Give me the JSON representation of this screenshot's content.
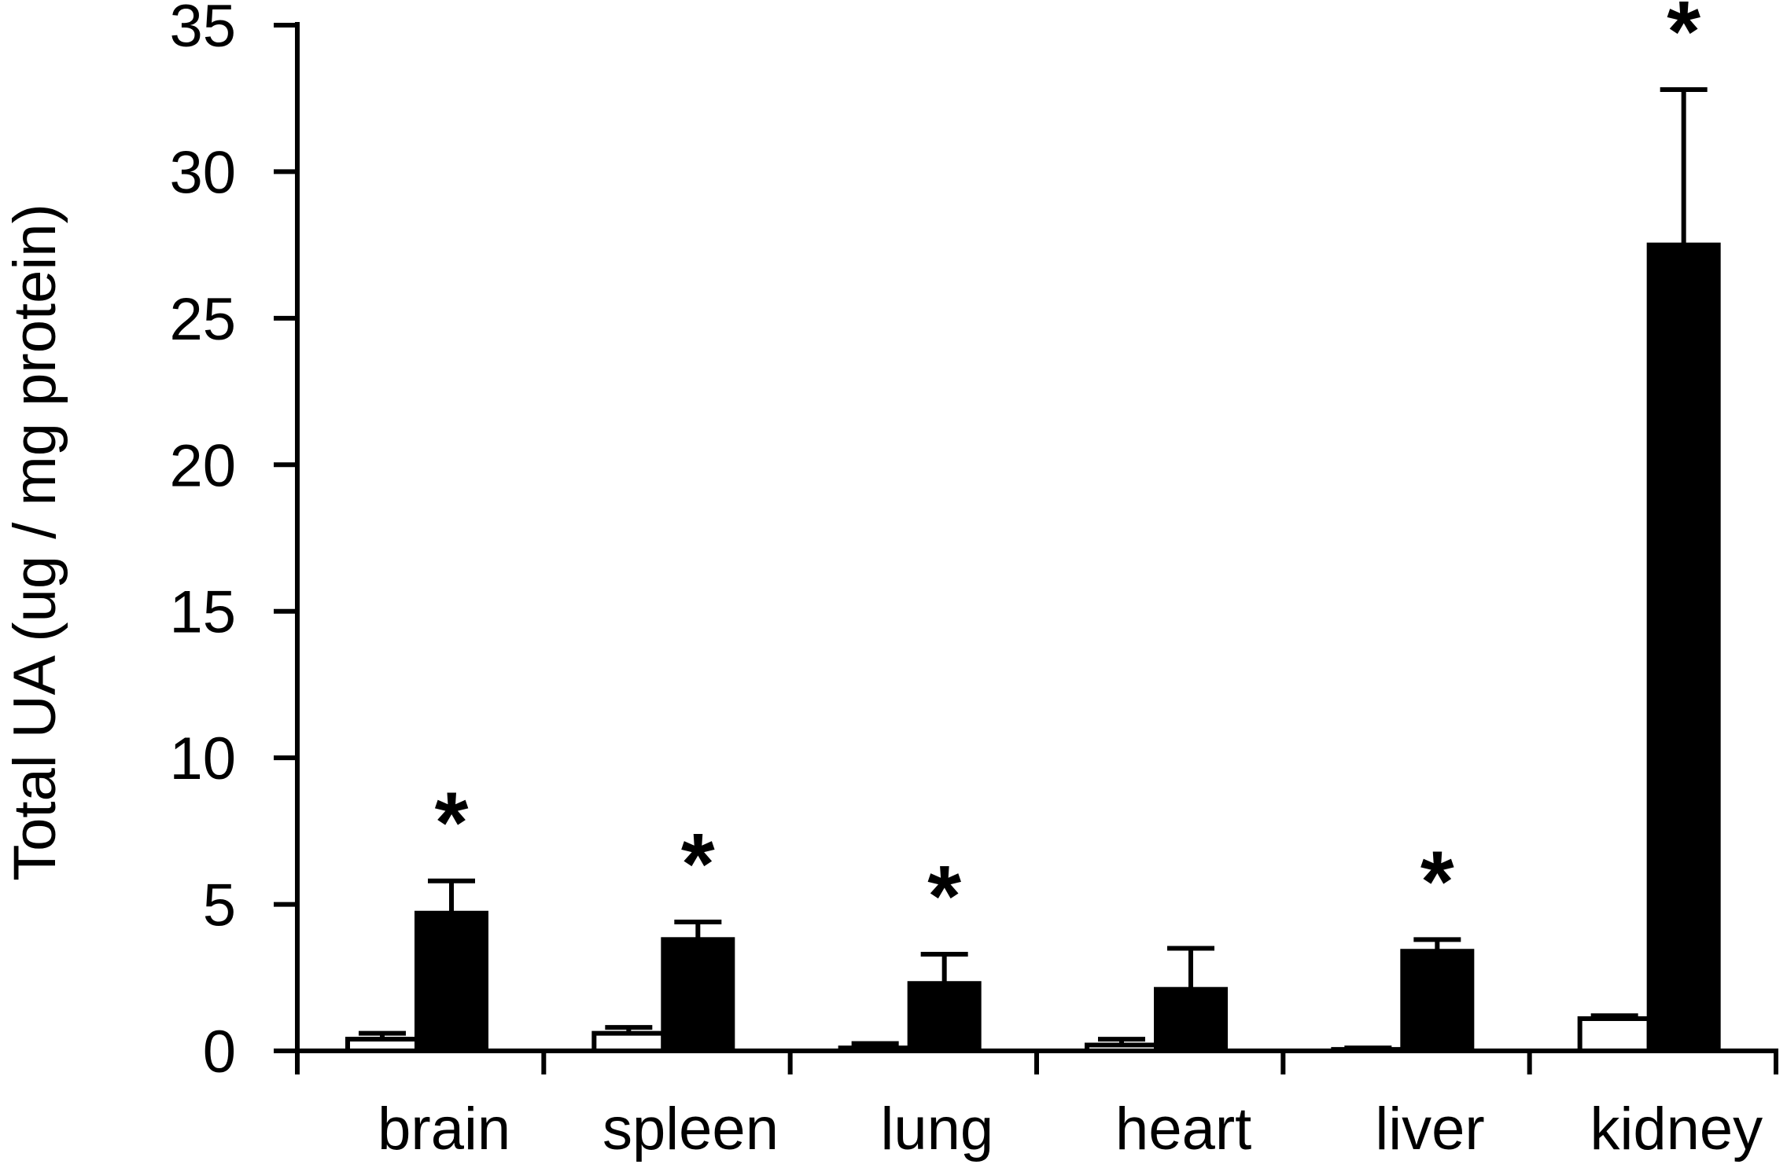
{
  "chart_data": {
    "type": "bar",
    "ylabel": "Total UA (ug / mg protein)",
    "ylim": [
      0,
      35
    ],
    "yticks": [
      0,
      5,
      10,
      15,
      20,
      25,
      30,
      35
    ],
    "categories": [
      "brain",
      "spleen",
      "lung",
      "heart",
      "liver",
      "kidney"
    ],
    "series": [
      {
        "fill": "#ffffff",
        "values": [
          0.4,
          0.6,
          0.1,
          0.2,
          0.05,
          1.1
        ],
        "errors": [
          0.2,
          0.2,
          0.15,
          0.2,
          0.05,
          0.1
        ]
      },
      {
        "fill": "#000000",
        "values": [
          4.7,
          3.8,
          2.3,
          2.1,
          3.4,
          27.5
        ],
        "errors": [
          1.1,
          0.6,
          1.0,
          1.4,
          0.4,
          5.3
        ]
      }
    ],
    "significance": [
      true,
      true,
      true,
      false,
      true,
      true
    ],
    "significance_mark": "*",
    "grid": false,
    "legend": "none"
  }
}
